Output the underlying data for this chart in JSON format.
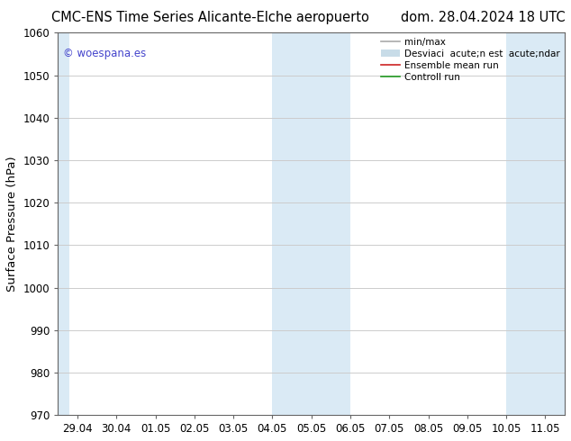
{
  "title_left": "CMC-ENS Time Series Alicante-Elche aeropuerto",
  "title_right": "dom. 28.04.2024 18 UTC",
  "ylabel": "Surface Pressure (hPa)",
  "ylim": [
    970,
    1060
  ],
  "yticks": [
    970,
    980,
    990,
    1000,
    1010,
    1020,
    1030,
    1040,
    1050,
    1060
  ],
  "x_labels": [
    "29.04",
    "30.04",
    "01.05",
    "02.05",
    "03.05",
    "04.05",
    "05.05",
    "06.05",
    "07.05",
    "08.05",
    "09.05",
    "10.05",
    "11.05"
  ],
  "x_positions": [
    0,
    1,
    2,
    3,
    4,
    5,
    6,
    7,
    8,
    9,
    10,
    11,
    12
  ],
  "shaded_bands": [
    {
      "xmin": -0.5,
      "xmax": -0.2
    },
    {
      "xmin": 5,
      "xmax": 7
    },
    {
      "xmin": 11,
      "xmax": 12.5
    }
  ],
  "watermark": "© woespana.es",
  "watermark_color": "#4444cc",
  "legend_entries": [
    {
      "label": "min/max",
      "color": "#aaaaaa",
      "lw": 1.2,
      "type": "line"
    },
    {
      "label": "Desviaci  acute;n est  acute;ndar",
      "color": "#c8dce8",
      "lw": 8,
      "type": "band"
    },
    {
      "label": "Ensemble mean run",
      "color": "#cc2222",
      "lw": 1.2,
      "type": "line"
    },
    {
      "label": "Controll run",
      "color": "#229922",
      "lw": 1.2,
      "type": "line"
    }
  ],
  "background_color": "#ffffff",
  "plot_bg_color": "#ffffff",
  "shaded_color": "#daeaf5",
  "grid_color": "#cccccc",
  "title_fontsize": 10.5,
  "axis_label_fontsize": 9.5,
  "tick_fontsize": 8.5,
  "legend_fontsize": 7.5
}
